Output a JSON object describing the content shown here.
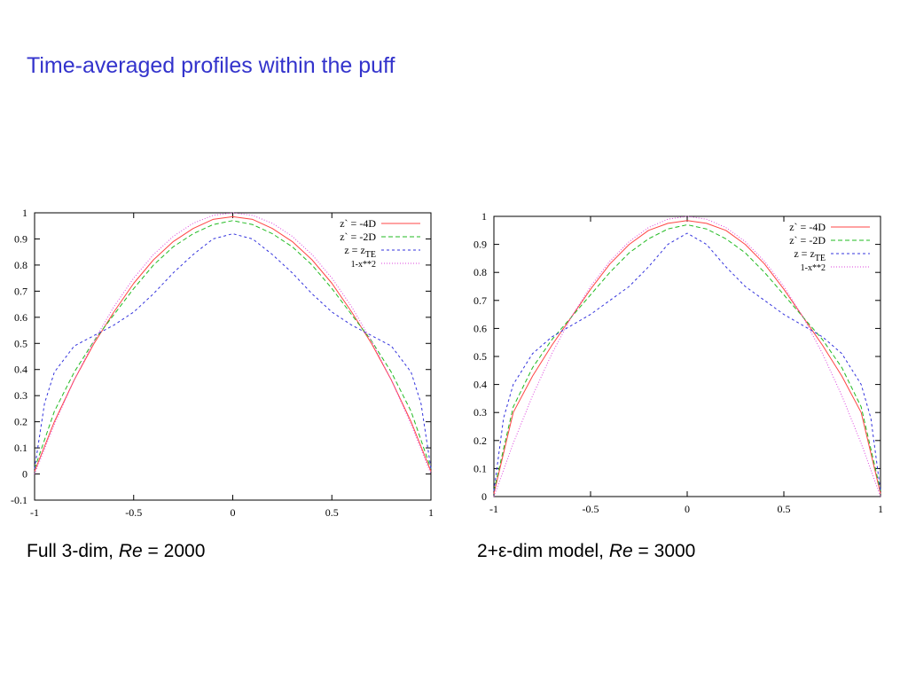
{
  "slide": {
    "title": "Time-averaged profiles within the puff",
    "captions": [
      {
        "prefix": "Full 3-dim, ",
        "italic": "Re",
        "suffix": " = 2000"
      },
      {
        "prefix": "2+ε-dim model, ",
        "italic": "Re",
        "suffix": " = 3000"
      }
    ]
  },
  "chart_data": [
    {
      "type": "line",
      "title": "",
      "xlabel": "",
      "ylabel": "",
      "xlim": [
        -1,
        1
      ],
      "ylim": [
        -0.1,
        1
      ],
      "xticks": [
        "-1",
        "-0.5",
        "0",
        "0.5",
        "1"
      ],
      "yticks": [
        "-0.1",
        "0",
        "0.1",
        "0.2",
        "0.3",
        "0.4",
        "0.5",
        "0.6",
        "0.7",
        "0.8",
        "0.9",
        "1"
      ],
      "grid": false,
      "legend": "top-right",
      "series": [
        {
          "name": "z` = -4D",
          "color": "#ff4444",
          "dash": "solid",
          "x": [
            -1,
            -0.9,
            -0.8,
            -0.7,
            -0.6,
            -0.5,
            -0.4,
            -0.3,
            -0.2,
            -0.1,
            0,
            0.1,
            0.2,
            0.3,
            0.4,
            0.5,
            0.6,
            0.7,
            0.8,
            0.9,
            1
          ],
          "y": [
            0.01,
            0.2,
            0.36,
            0.5,
            0.62,
            0.73,
            0.82,
            0.89,
            0.94,
            0.975,
            0.985,
            0.975,
            0.94,
            0.89,
            0.82,
            0.73,
            0.62,
            0.5,
            0.36,
            0.2,
            0.01
          ]
        },
        {
          "name": "z` = -2D",
          "color": "#22bb22",
          "dash": "dashed",
          "x": [
            -1,
            -0.9,
            -0.8,
            -0.7,
            -0.6,
            -0.5,
            -0.4,
            -0.3,
            -0.2,
            -0.1,
            0,
            0.1,
            0.2,
            0.3,
            0.4,
            0.5,
            0.6,
            0.7,
            0.8,
            0.9,
            1
          ],
          "y": [
            0.02,
            0.24,
            0.39,
            0.51,
            0.61,
            0.71,
            0.8,
            0.87,
            0.92,
            0.955,
            0.97,
            0.955,
            0.92,
            0.87,
            0.8,
            0.71,
            0.61,
            0.51,
            0.39,
            0.24,
            0.02
          ]
        },
        {
          "name": "z = z_TE",
          "color": "#3333dd",
          "dash": "short-dash",
          "x": [
            -1,
            -0.95,
            -0.9,
            -0.8,
            -0.7,
            -0.6,
            -0.5,
            -0.4,
            -0.3,
            -0.2,
            -0.1,
            0,
            0.1,
            0.2,
            0.3,
            0.4,
            0.5,
            0.6,
            0.7,
            0.8,
            0.9,
            0.95,
            1
          ],
          "y": [
            0.02,
            0.27,
            0.39,
            0.49,
            0.53,
            0.57,
            0.62,
            0.69,
            0.77,
            0.84,
            0.9,
            0.92,
            0.9,
            0.84,
            0.77,
            0.69,
            0.62,
            0.57,
            0.53,
            0.49,
            0.39,
            0.27,
            0.02
          ]
        },
        {
          "name": "1-x**2",
          "color": "#dd44dd",
          "dash": "dotted",
          "x": [
            -1,
            -0.9,
            -0.8,
            -0.7,
            -0.6,
            -0.5,
            -0.4,
            -0.3,
            -0.2,
            -0.1,
            0,
            0.1,
            0.2,
            0.3,
            0.4,
            0.5,
            0.6,
            0.7,
            0.8,
            0.9,
            1
          ],
          "y": [
            0,
            0.19,
            0.36,
            0.51,
            0.64,
            0.75,
            0.84,
            0.91,
            0.96,
            0.99,
            1,
            0.99,
            0.96,
            0.91,
            0.84,
            0.75,
            0.64,
            0.51,
            0.36,
            0.19,
            0
          ]
        }
      ]
    },
    {
      "type": "line",
      "title": "",
      "xlabel": "",
      "ylabel": "",
      "xlim": [
        -1,
        1
      ],
      "ylim": [
        0,
        1
      ],
      "xticks": [
        "-1",
        "-0.5",
        "0",
        "0.5",
        "1"
      ],
      "yticks": [
        "0",
        "0.1",
        "0.2",
        "0.3",
        "0.4",
        "0.5",
        "0.6",
        "0.7",
        "0.8",
        "0.9",
        "1"
      ],
      "grid": false,
      "legend": "top-right",
      "series": [
        {
          "name": "z` = -4D",
          "color": "#ff4444",
          "dash": "solid",
          "x": [
            -1,
            -0.9,
            -0.8,
            -0.7,
            -0.6,
            -0.5,
            -0.4,
            -0.3,
            -0.2,
            -0.1,
            0,
            0.1,
            0.2,
            0.3,
            0.4,
            0.5,
            0.6,
            0.7,
            0.8,
            0.9,
            1
          ],
          "y": [
            0.01,
            0.3,
            0.43,
            0.54,
            0.64,
            0.74,
            0.83,
            0.9,
            0.95,
            0.975,
            0.985,
            0.975,
            0.95,
            0.9,
            0.83,
            0.74,
            0.64,
            0.54,
            0.43,
            0.3,
            0.01
          ]
        },
        {
          "name": "z` = -2D",
          "color": "#22bb22",
          "dash": "dashed",
          "x": [
            -1,
            -0.9,
            -0.8,
            -0.7,
            -0.6,
            -0.5,
            -0.4,
            -0.3,
            -0.2,
            -0.1,
            0,
            0.1,
            0.2,
            0.3,
            0.4,
            0.5,
            0.6,
            0.7,
            0.8,
            0.9,
            1
          ],
          "y": [
            0.02,
            0.32,
            0.46,
            0.56,
            0.64,
            0.72,
            0.8,
            0.87,
            0.92,
            0.955,
            0.97,
            0.955,
            0.92,
            0.87,
            0.8,
            0.72,
            0.64,
            0.56,
            0.46,
            0.32,
            0.02
          ]
        },
        {
          "name": "z = z_TE",
          "color": "#3333dd",
          "dash": "short-dash",
          "x": [
            -1,
            -0.95,
            -0.9,
            -0.8,
            -0.7,
            -0.6,
            -0.5,
            -0.4,
            -0.3,
            -0.2,
            -0.1,
            0,
            0.1,
            0.2,
            0.3,
            0.4,
            0.5,
            0.6,
            0.7,
            0.8,
            0.9,
            0.95,
            1
          ],
          "y": [
            0.02,
            0.28,
            0.4,
            0.51,
            0.57,
            0.61,
            0.65,
            0.7,
            0.75,
            0.82,
            0.9,
            0.94,
            0.9,
            0.82,
            0.75,
            0.7,
            0.65,
            0.61,
            0.57,
            0.51,
            0.4,
            0.28,
            0.02
          ]
        },
        {
          "name": "1-x**2",
          "color": "#dd44dd",
          "dash": "dotted",
          "x": [
            -1,
            -0.9,
            -0.8,
            -0.7,
            -0.6,
            -0.5,
            -0.4,
            -0.3,
            -0.2,
            -0.1,
            0,
            0.1,
            0.2,
            0.3,
            0.4,
            0.5,
            0.6,
            0.7,
            0.8,
            0.9,
            1
          ],
          "y": [
            0,
            0.19,
            0.36,
            0.51,
            0.64,
            0.75,
            0.84,
            0.91,
            0.96,
            0.99,
            1,
            0.99,
            0.96,
            0.91,
            0.84,
            0.75,
            0.64,
            0.51,
            0.36,
            0.19,
            0
          ]
        }
      ]
    }
  ]
}
